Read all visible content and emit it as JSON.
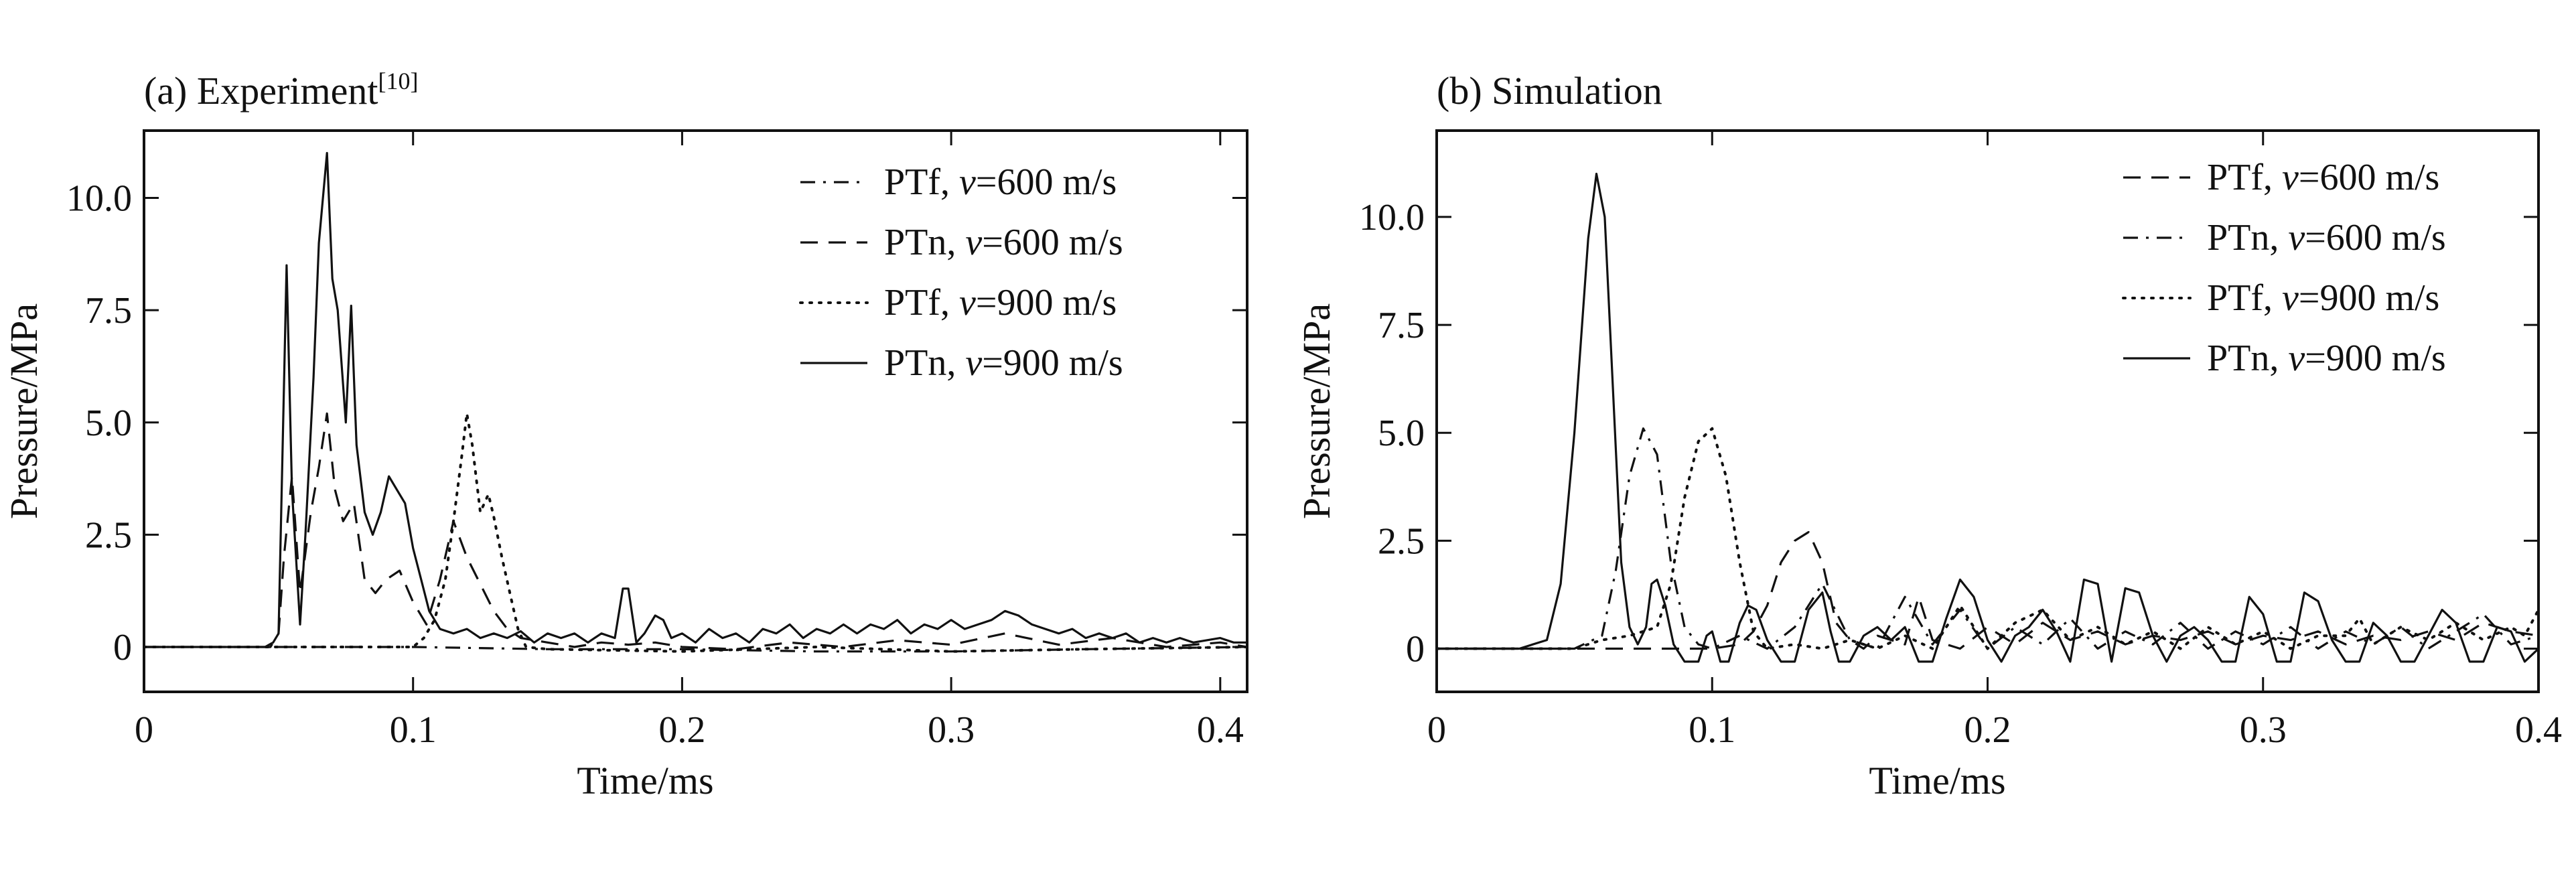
{
  "chart_data": [
    {
      "type": "line",
      "title": "(a) Experiment",
      "title_superscript": "[10]",
      "xlabel": "Time/ms",
      "ylabel": "Pressure/MPa",
      "xlim": [
        0,
        0.41
      ],
      "ylim": [
        -1,
        11.5
      ],
      "xticks": [
        0,
        0.1,
        0.2,
        0.3,
        0.4
      ],
      "xtick_labels": [
        "0",
        "0.1",
        "0.2",
        "0.3",
        "0.4"
      ],
      "yticks": [
        0,
        2.5,
        5.0,
        7.5,
        10.0
      ],
      "ytick_labels": [
        "0",
        "2.5",
        "5.0",
        "7.5",
        "10.0"
      ],
      "grid": false,
      "legend_position": "top-right",
      "series": [
        {
          "name": "PTf, v=600 m/s",
          "style": "dashdot",
          "x": [
            0,
            0.05,
            0.1,
            0.15,
            0.2,
            0.25,
            0.3,
            0.35,
            0.41
          ],
          "y": [
            0,
            0,
            0,
            -0.05,
            -0.05,
            -0.1,
            -0.1,
            -0.05,
            0
          ]
        },
        {
          "name": "PTn, v=600 m/s",
          "style": "dashed",
          "x": [
            0,
            0.047,
            0.05,
            0.052,
            0.055,
            0.058,
            0.062,
            0.065,
            0.068,
            0.071,
            0.074,
            0.078,
            0.082,
            0.086,
            0.09,
            0.095,
            0.1,
            0.105,
            0.11,
            0.115,
            0.12,
            0.125,
            0.13,
            0.135,
            0.14,
            0.15,
            0.16,
            0.17,
            0.18,
            0.19,
            0.2,
            0.22,
            0.24,
            0.26,
            0.28,
            0.3,
            0.32,
            0.34,
            0.36,
            0.38,
            0.4,
            0.41
          ],
          "y": [
            0,
            0,
            0.3,
            2.0,
            3.8,
            1.2,
            3.0,
            4.0,
            5.2,
            3.5,
            2.8,
            3.2,
            1.5,
            1.2,
            1.5,
            1.7,
            1.0,
            0.5,
            1.5,
            2.8,
            2.0,
            1.4,
            0.8,
            0.4,
            0.2,
            0.1,
            0.0,
            0.1,
            0.05,
            0.1,
            0.0,
            -0.05,
            0.1,
            0.0,
            0.15,
            0.05,
            0.3,
            0.05,
            0.2,
            0.0,
            0.1,
            0.0
          ]
        },
        {
          "name": "PTf, v=900 m/s",
          "style": "dotted",
          "x": [
            0,
            0.1,
            0.104,
            0.108,
            0.112,
            0.115,
            0.118,
            0.12,
            0.122,
            0.125,
            0.128,
            0.13,
            0.133,
            0.136,
            0.139,
            0.142,
            0.15,
            0.2,
            0.25,
            0.3,
            0.35,
            0.41
          ],
          "y": [
            0,
            0,
            0.2,
            0.6,
            1.5,
            2.8,
            4.2,
            5.2,
            4.5,
            3.0,
            3.4,
            2.9,
            2.0,
            1.2,
            0.4,
            0.0,
            -0.05,
            -0.1,
            0.0,
            -0.1,
            -0.05,
            0.0
          ]
        },
        {
          "name": "PTn, v=900 m/s",
          "style": "solid",
          "x": [
            0,
            0.045,
            0.048,
            0.05,
            0.053,
            0.055,
            0.058,
            0.06,
            0.063,
            0.065,
            0.068,
            0.07,
            0.072,
            0.075,
            0.077,
            0.079,
            0.082,
            0.085,
            0.088,
            0.091,
            0.094,
            0.097,
            0.1,
            0.103,
            0.106,
            0.11,
            0.115,
            0.12,
            0.125,
            0.13,
            0.135,
            0.14,
            0.145,
            0.15,
            0.155,
            0.16,
            0.165,
            0.17,
            0.175,
            0.178,
            0.18,
            0.183,
            0.186,
            0.19,
            0.193,
            0.196,
            0.2,
            0.205,
            0.21,
            0.215,
            0.22,
            0.225,
            0.23,
            0.235,
            0.24,
            0.245,
            0.25,
            0.255,
            0.26,
            0.265,
            0.27,
            0.275,
            0.28,
            0.285,
            0.29,
            0.295,
            0.3,
            0.305,
            0.31,
            0.315,
            0.32,
            0.325,
            0.33,
            0.335,
            0.34,
            0.345,
            0.35,
            0.355,
            0.36,
            0.365,
            0.37,
            0.375,
            0.38,
            0.385,
            0.39,
            0.395,
            0.4,
            0.405,
            0.41
          ],
          "y": [
            0,
            0,
            0.1,
            0.3,
            8.5,
            3.5,
            0.5,
            2.5,
            6.0,
            9.0,
            11.0,
            8.2,
            7.5,
            5.0,
            7.6,
            4.5,
            3.0,
            2.5,
            3.0,
            3.8,
            3.5,
            3.2,
            2.2,
            1.5,
            0.8,
            0.4,
            0.3,
            0.4,
            0.2,
            0.3,
            0.2,
            0.35,
            0.1,
            0.3,
            0.2,
            0.3,
            0.1,
            0.3,
            0.2,
            1.3,
            1.3,
            0.1,
            0.3,
            0.7,
            0.6,
            0.2,
            0.3,
            0.1,
            0.4,
            0.2,
            0.3,
            0.1,
            0.4,
            0.3,
            0.5,
            0.2,
            0.4,
            0.3,
            0.5,
            0.3,
            0.5,
            0.4,
            0.6,
            0.3,
            0.5,
            0.4,
            0.6,
            0.4,
            0.5,
            0.6,
            0.8,
            0.7,
            0.5,
            0.4,
            0.3,
            0.4,
            0.2,
            0.3,
            0.2,
            0.3,
            0.1,
            0.2,
            0.1,
            0.2,
            0.1,
            0.15,
            0.2,
            0.1,
            0.1
          ]
        }
      ]
    },
    {
      "type": "line",
      "title": "(b) Simulation",
      "xlabel": "Time/ms",
      "ylabel": "Pressure/MPa",
      "xlim": [
        0,
        0.4
      ],
      "ylim": [
        -1,
        12
      ],
      "xticks": [
        0,
        0.1,
        0.2,
        0.3,
        0.4
      ],
      "xtick_labels": [
        "0",
        "0.1",
        "0.2",
        "0.3",
        "0.4"
      ],
      "yticks": [
        0,
        2.5,
        5.0,
        7.5,
        10.0
      ],
      "ytick_labels": [
        "0",
        "2.5",
        "5.0",
        "7.5",
        "10.0"
      ],
      "grid": false,
      "legend_position": "top-right",
      "series": [
        {
          "name": "PTf, v=600 m/s",
          "style": "dashed",
          "x": [
            0,
            0.06,
            0.1,
            0.11,
            0.115,
            0.12,
            0.125,
            0.13,
            0.135,
            0.14,
            0.145,
            0.15,
            0.155,
            0.16,
            0.17,
            0.175,
            0.18,
            0.19,
            0.2,
            0.21,
            0.22,
            0.23,
            0.24,
            0.25,
            0.26,
            0.27,
            0.28,
            0.29,
            0.3,
            0.31,
            0.32,
            0.33,
            0.34,
            0.35,
            0.36,
            0.37,
            0.38,
            0.39,
            0.4
          ],
          "y": [
            0,
            0,
            0,
            0.1,
            0.4,
            1.0,
            2.0,
            2.5,
            2.7,
            2.0,
            0.6,
            0.2,
            0.0,
            0.3,
            0.1,
            1.2,
            0.2,
            0.0,
            0.5,
            0.1,
            0.6,
            0.2,
            0.4,
            0.1,
            0.3,
            0.2,
            0.4,
            0.1,
            0.3,
            0.2,
            0.4,
            0.1,
            0.3,
            0.2,
            0.4,
            0.2,
            0.6,
            0.4,
            0.3
          ]
        },
        {
          "name": "PTn, v=600 m/s",
          "style": "dashdot",
          "x": [
            0,
            0.05,
            0.06,
            0.065,
            0.07,
            0.075,
            0.08,
            0.085,
            0.09,
            0.095,
            0.1,
            0.11,
            0.12,
            0.13,
            0.14,
            0.15,
            0.16,
            0.17,
            0.18,
            0.19,
            0.2,
            0.21,
            0.22,
            0.23,
            0.24,
            0.25,
            0.26,
            0.27,
            0.28,
            0.29,
            0.3,
            0.31,
            0.32,
            0.33,
            0.34,
            0.35,
            0.36,
            0.37,
            0.38,
            0.39,
            0.4
          ],
          "y": [
            0,
            0,
            0.3,
            1.8,
            4.0,
            5.1,
            4.5,
            2.0,
            0.5,
            0.1,
            0.0,
            0.3,
            0.0,
            0.5,
            1.5,
            0.2,
            0.0,
            1.2,
            0.1,
            0.9,
            0.0,
            0.5,
            0.1,
            0.7,
            0.0,
            0.4,
            0.1,
            0.6,
            0.0,
            0.4,
            0.1,
            0.5,
            0.0,
            0.4,
            0.1,
            0.5,
            0.0,
            0.4,
            0.8,
            0.1,
            0.3
          ]
        },
        {
          "name": "PTf, v=900 m/s",
          "style": "dotted",
          "x": [
            0,
            0.05,
            0.06,
            0.07,
            0.08,
            0.085,
            0.09,
            0.095,
            0.1,
            0.105,
            0.11,
            0.115,
            0.12,
            0.13,
            0.14,
            0.15,
            0.16,
            0.17,
            0.18,
            0.19,
            0.2,
            0.21,
            0.22,
            0.23,
            0.24,
            0.25,
            0.26,
            0.27,
            0.28,
            0.29,
            0.3,
            0.31,
            0.32,
            0.33,
            0.335,
            0.34,
            0.35,
            0.36,
            0.37,
            0.38,
            0.39,
            0.395,
            0.4
          ],
          "y": [
            0,
            0,
            0.2,
            0.3,
            0.5,
            1.5,
            3.5,
            4.8,
            5.1,
            4.0,
            2.0,
            0.4,
            0.0,
            0.1,
            0.0,
            0.2,
            0.0,
            0.3,
            0.0,
            1.0,
            0.0,
            0.6,
            0.9,
            0.2,
            0.5,
            0.1,
            0.4,
            0.0,
            0.5,
            0.1,
            0.4,
            0.0,
            0.3,
            0.3,
            0.7,
            0.1,
            0.5,
            0.2,
            0.6,
            0.2,
            0.5,
            0.3,
            0.9
          ]
        },
        {
          "name": "PTn, v=900 m/s",
          "style": "solid",
          "x": [
            0,
            0.03,
            0.04,
            0.045,
            0.05,
            0.055,
            0.058,
            0.061,
            0.064,
            0.067,
            0.07,
            0.073,
            0.076,
            0.078,
            0.08,
            0.083,
            0.086,
            0.09,
            0.095,
            0.098,
            0.1,
            0.103,
            0.106,
            0.11,
            0.113,
            0.116,
            0.12,
            0.125,
            0.13,
            0.135,
            0.14,
            0.143,
            0.146,
            0.15,
            0.155,
            0.16,
            0.165,
            0.17,
            0.175,
            0.18,
            0.185,
            0.19,
            0.195,
            0.2,
            0.205,
            0.21,
            0.215,
            0.22,
            0.225,
            0.23,
            0.235,
            0.24,
            0.245,
            0.25,
            0.255,
            0.26,
            0.265,
            0.27,
            0.275,
            0.28,
            0.285,
            0.29,
            0.295,
            0.3,
            0.305,
            0.31,
            0.315,
            0.32,
            0.325,
            0.33,
            0.335,
            0.34,
            0.345,
            0.35,
            0.355,
            0.36,
            0.365,
            0.37,
            0.375,
            0.38,
            0.385,
            0.39,
            0.395,
            0.4
          ],
          "y": [
            0,
            0,
            0.2,
            1.5,
            5.0,
            9.5,
            11.0,
            10.0,
            6.0,
            2.0,
            0.5,
            0.1,
            0.5,
            1.5,
            1.6,
            1.0,
            0.1,
            -0.3,
            -0.3,
            0.3,
            0.4,
            -0.3,
            -0.3,
            0.6,
            1.0,
            0.9,
            0.2,
            -0.3,
            -0.3,
            0.9,
            1.3,
            0.4,
            -0.3,
            -0.3,
            0.3,
            0.5,
            0.2,
            0.5,
            -0.3,
            -0.3,
            0.7,
            1.6,
            1.2,
            0.2,
            -0.3,
            0.3,
            0.5,
            0.9,
            0.4,
            -0.3,
            1.6,
            1.5,
            -0.3,
            1.4,
            1.3,
            0.3,
            -0.3,
            0.3,
            0.5,
            0.2,
            -0.3,
            -0.3,
            1.2,
            0.8,
            -0.3,
            -0.3,
            1.3,
            1.1,
            0.2,
            -0.3,
            -0.3,
            0.6,
            0.3,
            -0.3,
            -0.3,
            0.3,
            0.9,
            0.6,
            -0.3,
            -0.3,
            0.5,
            0.4,
            -0.3,
            0.0
          ]
        }
      ]
    }
  ]
}
